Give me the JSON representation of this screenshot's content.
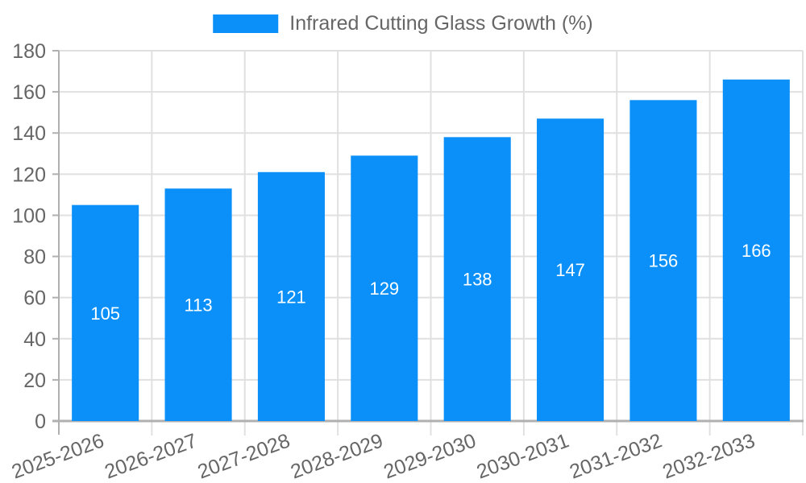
{
  "legend": {
    "label": "Infrared Cutting Glass Growth (%)"
  },
  "chart_data": {
    "type": "bar",
    "title": "",
    "xlabel": "",
    "ylabel": "",
    "categories": [
      "2025-2026",
      "2026-2027",
      "2027-2028",
      "2028-2029",
      "2029-2030",
      "2030-2031",
      "2031-2032",
      "2032-2033"
    ],
    "series": [
      {
        "name": "Infrared Cutting Glass Growth (%)",
        "values": [
          105,
          113,
          121,
          129,
          138,
          147,
          156,
          166
        ]
      }
    ],
    "value_labels": [
      "105",
      "113",
      "121",
      "129",
      "138",
      "147",
      "156",
      "166"
    ],
    "y_tick_labels": [
      "0",
      "20",
      "40",
      "60",
      "80",
      "100",
      "120",
      "140",
      "160",
      "180"
    ],
    "ylim": [
      0,
      180
    ],
    "ytick_step": 20,
    "grid": true,
    "legend_position": "top-center",
    "x_label_rotation_deg": -20,
    "colors": {
      "bar": "#0A90F8",
      "value_label": "#FFFFFF",
      "axis_text": "#666666",
      "gridline": "#E0E0E0",
      "axis_line": "#B0B0B0"
    }
  }
}
